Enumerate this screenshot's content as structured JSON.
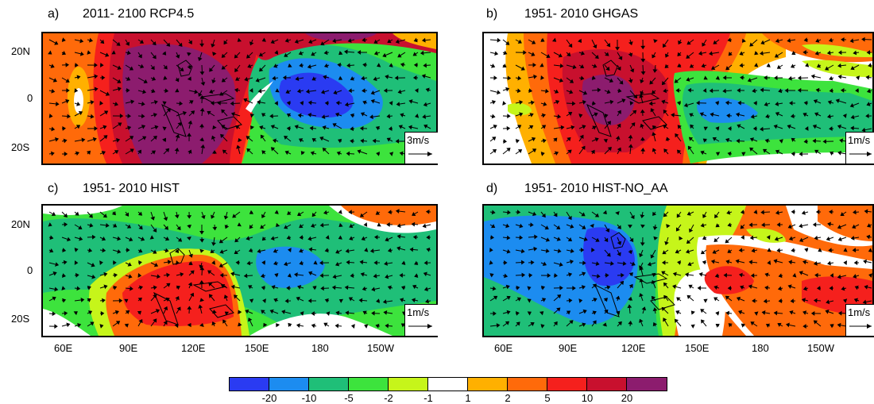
{
  "panels": [
    {
      "id": "a",
      "label": "a)",
      "title": "2011- 2100 RCP4.5",
      "vector_ref": "3m/s"
    },
    {
      "id": "b",
      "label": "b)",
      "title": "1951- 2010 GHGAS",
      "vector_ref": "1m/s"
    },
    {
      "id": "c",
      "label": "c)",
      "title": "1951- 2010 HIST",
      "vector_ref": "1m/s"
    },
    {
      "id": "d",
      "label": "d)",
      "title": "1951- 2010 HIST-NO_AA",
      "vector_ref": "1m/s"
    }
  ],
  "lat_labels": [
    "20N",
    "0",
    "20S"
  ],
  "lon_labels": [
    "60E",
    "90E",
    "120E",
    "150E",
    "180",
    "150W"
  ],
  "colorbar": {
    "labels": [
      "-20",
      "-10",
      "-5",
      "-2",
      "-1",
      "1",
      "2",
      "5",
      "10",
      "20"
    ],
    "colors": [
      "#2a3bf2",
      "#1c8cf0",
      "#1fbf78",
      "#3de33d",
      "#c6f51a",
      "#ffffff",
      "#ffb000",
      "#ff6a0a",
      "#f5201d",
      "#c8102e",
      "#8c1c6e"
    ]
  }
}
